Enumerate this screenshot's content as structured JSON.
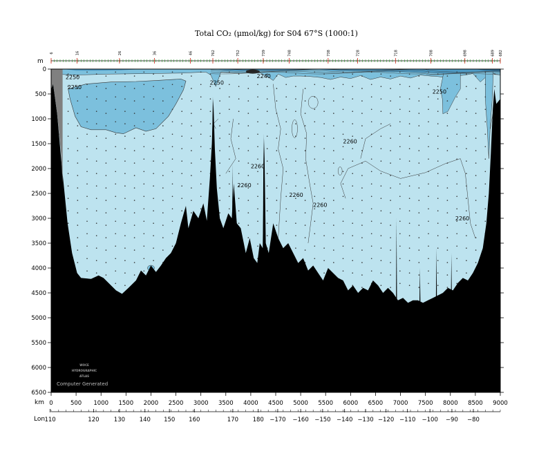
{
  "chart_data": {
    "type": "section",
    "title": "Total CO₂ (μmol/kg) for S04 67°S (1000:1)",
    "y_unit": "m",
    "x_unit": "km",
    "lon_label": "Lon",
    "xlim": [
      0,
      9000
    ],
    "ylim": [
      6500,
      0
    ],
    "x_ticks": [
      0,
      500,
      1000,
      1500,
      2000,
      2500,
      3000,
      3500,
      4000,
      4500,
      5000,
      5500,
      6000,
      6500,
      7000,
      7500,
      8000,
      8500,
      9000
    ],
    "y_ticks": [
      0,
      500,
      1000,
      1500,
      2000,
      2500,
      3000,
      3500,
      4000,
      4500,
      5000,
      5500,
      6000,
      6500
    ],
    "lon_ticks": [
      {
        "label": "110",
        "km": -20
      },
      {
        "label": "120",
        "km": 850
      },
      {
        "label": "130",
        "km": 1370
      },
      {
        "label": "140",
        "km": 1880
      },
      {
        "label": "150",
        "km": 2370
      },
      {
        "label": "160",
        "km": 2870
      },
      {
        "label": "170",
        "km": 3640
      },
      {
        "label": "180",
        "km": 4150
      },
      {
        "label": "−170",
        "km": 4540
      },
      {
        "label": "−160",
        "km": 5000
      },
      {
        "label": "−150",
        "km": 5440
      },
      {
        "label": "−140",
        "km": 5880
      },
      {
        "label": "−130",
        "km": 6300
      },
      {
        "label": "−120",
        "km": 6710
      },
      {
        "label": "−110",
        "km": 7140
      },
      {
        "label": "−100",
        "km": 7590
      },
      {
        "label": "−90",
        "km": 8030
      },
      {
        "label": "−80",
        "km": 8460
      }
    ],
    "stations": [
      {
        "label": "6",
        "km": 0
      },
      {
        "label": "16",
        "km": 520
      },
      {
        "label": "26",
        "km": 1370
      },
      {
        "label": "36",
        "km": 2070
      },
      {
        "label": "46",
        "km": 2790
      },
      {
        "label": "762",
        "km": 3240
      },
      {
        "label": "752",
        "km": 3740
      },
      {
        "label": "739",
        "km": 4250
      },
      {
        "label": "748",
        "km": 4770
      },
      {
        "label": "738",
        "km": 5550
      },
      {
        "label": "728",
        "km": 6140
      },
      {
        "label": "718",
        "km": 6900
      },
      {
        "label": "708",
        "km": 7610
      },
      {
        "label": "698",
        "km": 8290
      },
      {
        "label": "689",
        "km": 8840
      },
      {
        "label": "682",
        "km": 9000
      }
    ],
    "contour_labels": [
      {
        "text": "2250",
        "km": 430,
        "depth": 160
      },
      {
        "text": "2250",
        "km": 470,
        "depth": 360
      },
      {
        "text": "2250",
        "km": 3320,
        "depth": 270
      },
      {
        "text": "2240",
        "km": 4260,
        "depth": 140
      },
      {
        "text": "2250",
        "km": 7780,
        "depth": 450
      },
      {
        "text": "2260",
        "km": 5990,
        "depth": 1450
      },
      {
        "text": "2260",
        "km": 4140,
        "depth": 1950
      },
      {
        "text": "2260",
        "km": 3870,
        "depth": 2330
      },
      {
        "text": "2260",
        "km": 4910,
        "depth": 2530
      },
      {
        "text": "2260",
        "km": 5390,
        "depth": 2730
      },
      {
        "text": "2260",
        "km": 8240,
        "depth": 3000
      },
      {
        "text": "226",
        "km": 8810,
        "depth": 3550
      }
    ],
    "colors": {
      "lt2240": "#2f6f96",
      "c2240_2250": "#4d9ac4",
      "c2250_2260": "#7cc0dd",
      "gt2260": "#bde3ef",
      "bottom": "#000000",
      "land": "#808080"
    },
    "grid": false
  },
  "logo_lines": [
    "WOCE",
    "HYDROGRAPHIC",
    "ATLAS"
  ],
  "credit": "Computer Generated"
}
